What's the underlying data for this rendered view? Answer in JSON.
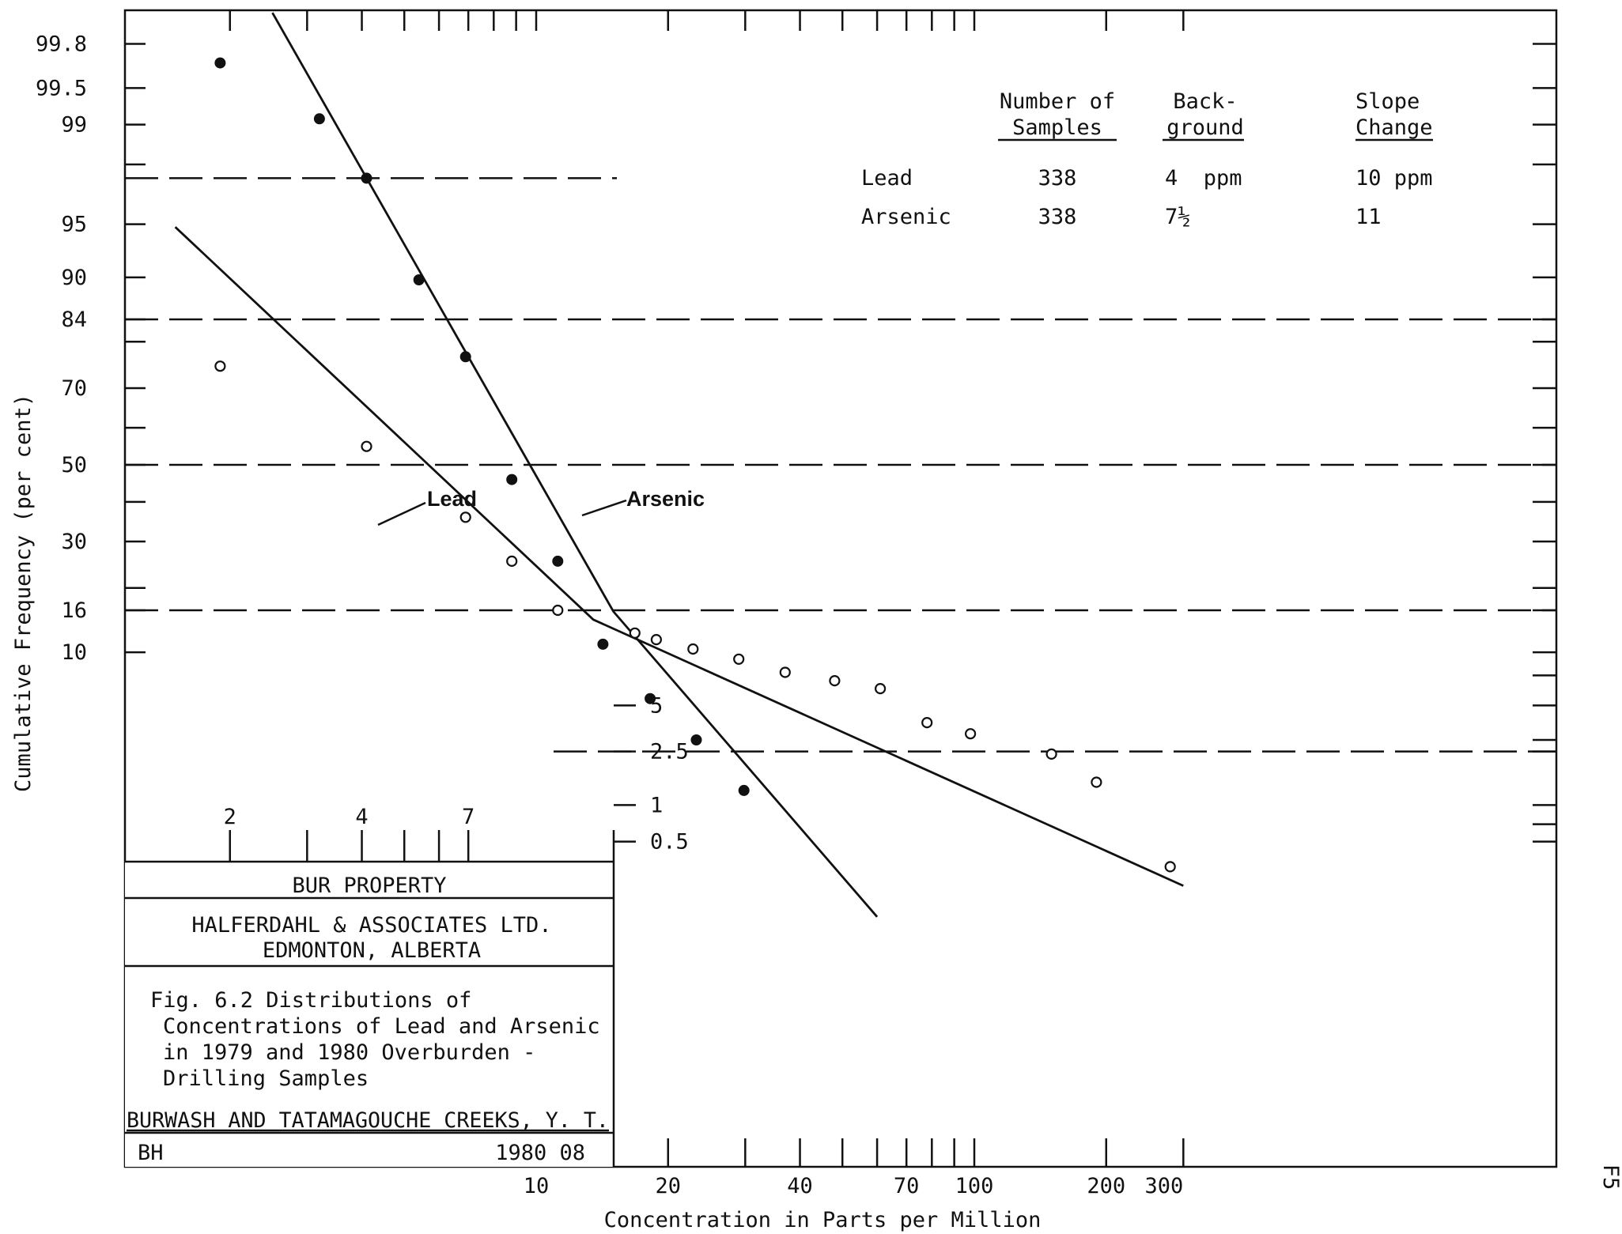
{
  "chart_data": {
    "type": "scatter",
    "title": "",
    "xlabel": "Concentration in Parts per Million",
    "ylabel": "Cumulative Frequency (per cent)",
    "x_scale": "log",
    "y_scale": "probability",
    "xlim": [
      1.5,
      300
    ],
    "ylim": [
      0.1,
      99.9
    ],
    "x_tick_labels": [
      "2",
      "4",
      "7",
      "10",
      "20",
      "40",
      "70",
      "100",
      "200",
      "300"
    ],
    "x_tick_values": [
      2,
      4,
      7,
      10,
      20,
      40,
      70,
      100,
      200,
      300
    ],
    "y_tick_labels": [
      "99.8",
      "99.5",
      "99",
      "95",
      "90",
      "84",
      "70",
      "50",
      "30",
      "16",
      "10",
      "5",
      "2.5",
      "1",
      "0.5"
    ],
    "y_tick_values": [
      99.8,
      99.5,
      99,
      95,
      90,
      84,
      70,
      50,
      30,
      16,
      10,
      5,
      2.5,
      1,
      0.5
    ],
    "dashed_reference_levels": [
      97.5,
      84,
      50,
      16,
      2.5
    ],
    "side_label": "F5",
    "series": [
      {
        "name": "Arsenic",
        "marker": "filled",
        "points": [
          {
            "x": 1.9,
            "y": 99.7
          },
          {
            "x": 3.2,
            "y": 99.1
          },
          {
            "x": 4.1,
            "y": 97.5
          },
          {
            "x": 5.4,
            "y": 89.7
          },
          {
            "x": 6.9,
            "y": 77
          },
          {
            "x": 8.8,
            "y": 46
          },
          {
            "x": 11.2,
            "y": 25.5
          },
          {
            "x": 14.2,
            "y": 11
          },
          {
            "x": 18.2,
            "y": 5.5
          },
          {
            "x": 23.2,
            "y": 3
          },
          {
            "x": 29.8,
            "y": 1.3
          }
        ],
        "fit_line": [
          {
            "x": 2.5,
            "y": 99.9
          },
          {
            "x": 15,
            "y": 15.8
          },
          {
            "x": 60,
            "y": 0.1
          }
        ]
      },
      {
        "name": "Lead",
        "marker": "open",
        "points": [
          {
            "x": 1.9,
            "y": 75
          },
          {
            "x": 4.1,
            "y": 55
          },
          {
            "x": 6.9,
            "y": 36
          },
          {
            "x": 8.8,
            "y": 25.5
          },
          {
            "x": 11.2,
            "y": 16
          },
          {
            "x": 16.8,
            "y": 12.5
          },
          {
            "x": 18.8,
            "y": 11.6
          },
          {
            "x": 22.8,
            "y": 10.4
          },
          {
            "x": 29,
            "y": 9.2
          },
          {
            "x": 37,
            "y": 7.8
          },
          {
            "x": 48,
            "y": 7
          },
          {
            "x": 61,
            "y": 6.3
          },
          {
            "x": 78,
            "y": 3.9
          },
          {
            "x": 98,
            "y": 3.3
          },
          {
            "x": 150,
            "y": 2.4
          },
          {
            "x": 190,
            "y": 1.5
          },
          {
            "x": 280,
            "y": 0.3
          }
        ],
        "fit_line": [
          {
            "x": 1.5,
            "y": 94.8
          },
          {
            "x": 13.5,
            "y": 14.5
          },
          {
            "x": 300,
            "y": 0.2
          }
        ]
      }
    ]
  },
  "annotations": {
    "lead_label": "Lead",
    "arsenic_label": "Arsenic"
  },
  "stats_table": {
    "headers": [
      [
        "Number of",
        "Samples"
      ],
      [
        "Back-",
        "ground"
      ],
      [
        "Slope",
        "Change"
      ]
    ],
    "rows": [
      {
        "element": "Lead",
        "samples": "338",
        "background": "4  ppm",
        "slope_change": "10 ppm"
      },
      {
        "element": "Arsenic",
        "samples": "338",
        "background": "7½",
        "slope_change": "11"
      }
    ]
  },
  "title_block": {
    "property": "BUR PROPERTY",
    "company_line1": "HALFERDAHL & ASSOCIATES LTD.",
    "company_line2": "EDMONTON, ALBERTA",
    "caption_lines": [
      "Fig. 6.2  Distributions of",
      "Concentrations of Lead and Arsenic",
      "in 1979 and 1980 Overburden -",
      "Drilling Samples"
    ],
    "location": "BURWASH AND TATAMAGOUCHE CREEKS, Y. T.",
    "initials": "BH",
    "date": "1980 08"
  }
}
